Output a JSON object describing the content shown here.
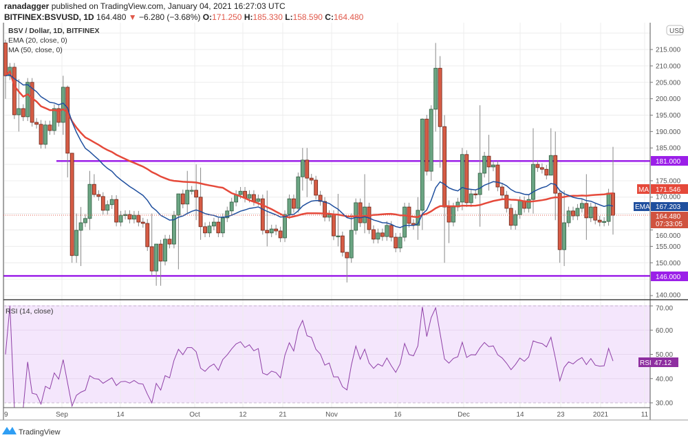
{
  "header": {
    "publisher": "ranadagger",
    "published_text": "published on TradingView.com, January 04, 2021 16:27:03 UTC",
    "symbol": "BITFINEX:BSVUSD, 1D",
    "last": "164.480",
    "change": "−6.280 (−3.68%)",
    "o_label": "O:",
    "o": "171.250",
    "h_label": "H:",
    "h": "185.330",
    "l_label": "L:",
    "l": "158.590",
    "c_label": "C:",
    "c": "164.480"
  },
  "legend": {
    "title": "BSV / Dollar, 1D, BITFINEX",
    "ema": "EMA (20, close, 0)",
    "ma": "MA (50, close, 0)",
    "rsi": "RSI (14, close)"
  },
  "colors": {
    "up": "#6ba583",
    "down": "#d65c45",
    "ema": "#1f4f9e",
    "ma": "#e5493a",
    "level": "#9b1fe8",
    "rsi": "#8e3fa6",
    "rsi_band": "#f4e6fc"
  },
  "axis": {
    "currency": "USD",
    "price_ticks": [
      "140.000",
      "150.000",
      "155.000",
      "160.000",
      "170.000",
      "175.000",
      "185.000",
      "190.000",
      "195.000",
      "200.000",
      "205.000",
      "210.000",
      "215.000"
    ],
    "rsi_ticks": [
      "30.00",
      "40.00",
      "50.00",
      "60.00",
      "70.00"
    ],
    "time_ticks": [
      "9",
      "Sep",
      "14",
      "Oct",
      "12",
      "21",
      "Nov",
      "16",
      "Dec",
      "14",
      "23",
      "2021",
      "11"
    ]
  },
  "labels": {
    "resistance": "181.000",
    "support": "146.000",
    "ma_tag": "MA",
    "ma_value": "171.546",
    "ema_tag": "EMA",
    "ema_value": "167.203",
    "last_price": "164.480",
    "countdown": "07:33:05",
    "rsi_tag": "RSI",
    "rsi_value": "47.12"
  },
  "footer": {
    "brand": "TradingView"
  },
  "chart_data": {
    "type": "candlestick",
    "title": "BSV / Dollar, 1D, BITFINEX",
    "ylim": [
      138,
      221
    ],
    "rsi_ylim": [
      25,
      72
    ],
    "horizontal_levels": [
      181,
      146
    ],
    "closes": [
      207.0,
      209.6,
      195.1,
      197.0,
      194.5,
      205.0,
      192.8,
      192.2,
      186.1,
      192.0,
      190.3,
      197.0,
      192.8,
      203.5,
      183.4,
      152.2,
      159.9,
      162.2,
      163.5,
      173.9,
      170.8,
      170.2,
      166.0,
      167.7,
      169.3,
      162.4,
      164.5,
      164.7,
      163.3,
      164.5,
      162.4,
      162.0,
      154.9,
      147.5,
      155.7,
      150.5,
      157.2,
      155.7,
      164.5,
      171.0,
      167.9,
      172.1,
      172.1,
      170.0,
      161.0,
      159.1,
      161.2,
      162.4,
      159.1,
      163.7,
      165.8,
      168.5,
      170.8,
      171.8,
      169.7,
      170.8,
      168.7,
      169.5,
      159.9,
      159.1,
      160.3,
      159.7,
      157.6,
      164.7,
      169.5,
      166.6,
      176.2,
      181.3,
      175.8,
      175.2,
      170.6,
      168.7,
      163.9,
      164.7,
      158.2,
      158.2,
      153.2,
      151.5,
      159.9,
      168.3,
      162.2,
      167.0,
      160.1,
      157.2,
      159.1,
      158.0,
      161.4,
      157.8,
      154.5,
      157.8,
      167.0,
      162.0,
      161.4,
      166.0,
      193.8,
      177.9,
      196.8,
      209.3,
      191.5,
      167.0,
      162.4,
      167.0,
      168.5,
      183.0,
      168.3,
      171.0,
      170.8,
      177.3,
      182.5,
      179.2,
      179.8,
      173.1,
      170.6,
      166.6,
      161.4,
      164.7,
      168.9,
      166.6,
      169.3,
      180.0,
      179.0,
      178.5,
      176.7,
      182.7,
      171.2,
      154.0,
      162.2,
      165.8,
      164.3,
      166.6,
      168.1,
      163.7,
      167.0,
      163.0,
      162.4,
      162.6,
      171.25,
      164.48
    ],
    "first_open": 217.0,
    "notable_wicks": {
      "0": [
        218,
        200
      ],
      "3": [
        206,
        190
      ],
      "13": [
        207,
        189
      ],
      "14": [
        204,
        176
      ],
      "15": [
        183,
        150
      ],
      "16": [
        165,
        150
      ],
      "17": [
        167,
        149
      ],
      "19": [
        178,
        160
      ],
      "20": [
        177,
        170
      ],
      "33": [
        165,
        146
      ],
      "34": [
        155,
        143
      ],
      "35": [
        157,
        143
      ],
      "39": [
        171,
        148
      ],
      "41": [
        178,
        165
      ],
      "43": [
        180,
        163
      ],
      "44": [
        179,
        157
      ],
      "59": [
        172,
        155
      ],
      "67": [
        185,
        172
      ],
      "68": [
        185,
        170
      ],
      "75": [
        171,
        155
      ],
      "77": [
        152,
        144
      ],
      "78": [
        165,
        150
      ],
      "81": [
        177,
        159
      ],
      "93": [
        170,
        157
      ],
      "94": [
        194,
        160
      ],
      "96": [
        198,
        175
      ],
      "97": [
        217,
        190
      ],
      "98": [
        213,
        179
      ],
      "99": [
        195,
        150
      ],
      "100": [
        169,
        156
      ],
      "103": [
        185,
        166
      ],
      "107": [
        198,
        161
      ],
      "109": [
        189,
        172
      ],
      "119": [
        191,
        165
      ],
      "123": [
        191,
        178
      ],
      "124": [
        190,
        163
      ],
      "125": [
        172,
        150
      ],
      "126": [
        172,
        149
      ],
      "131": [
        177,
        157
      ],
      "137": [
        185.33,
        158.59
      ]
    },
    "indicators": [
      "EMA 20",
      "MA 50",
      "RSI 14"
    ]
  }
}
